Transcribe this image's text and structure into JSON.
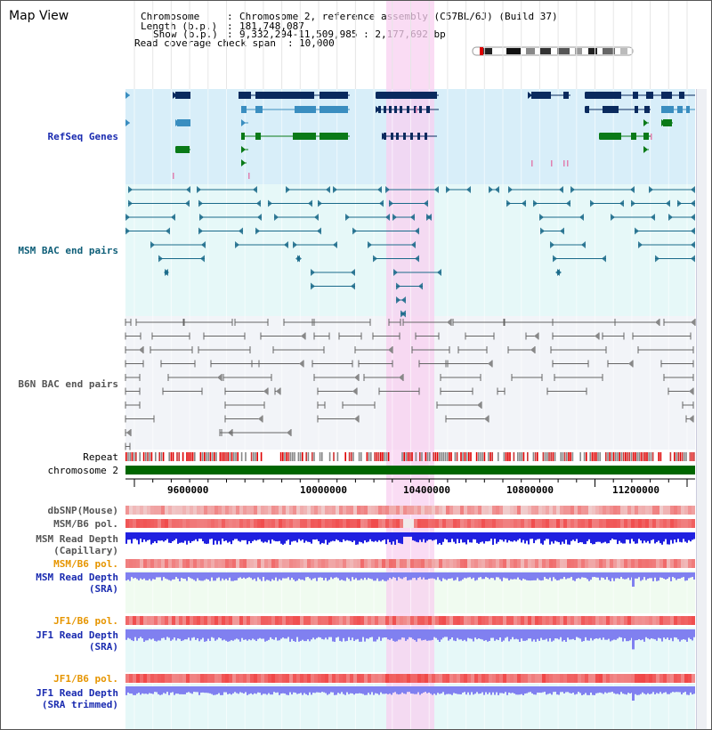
{
  "view": {
    "title": "Map View",
    "chromosome_label": "Chromosome",
    "chromosome_value": "Chromosome 2, reference assembly (C57BL/6J) (Build 37)",
    "length_label": "Length (b.p.)",
    "length_value": "181,748,087",
    "show_label": "Show (b.p.)",
    "show_value": "9,332,294-11,509,985 : 2,177,692 bp",
    "coverage_label": "Read coverage check span",
    "coverage_value": "10,000"
  },
  "tracks": {
    "refseq": "RefSeq Genes",
    "msm_bac": "MSM BAC end pairs",
    "b6n_bac": "B6N BAC end pairs",
    "repeat": "Repeat",
    "chromosome": "chromosome 2",
    "dbsnp": "dbSNP(Mouse)",
    "msm_b6_pol_1": "MSM/B6 pol.",
    "msm_read_depth_cap_1": "MSM Read Depth",
    "msm_read_depth_cap_2": "(Capillary)",
    "msm_b6_pol_2": "MSM/B6 pol.",
    "msm_read_depth_sra_1": "MSM Read Depth",
    "msm_read_depth_sra_2": "(SRA)",
    "jf1_b6_pol_1": "JF1/B6 pol.",
    "jf1_read_depth_sra_1": "JF1 Read Depth",
    "jf1_read_depth_sra_2": "(SRA)",
    "jf1_b6_pol_2": "JF1/B6 pol.",
    "jf1_read_depth_trim_1": "JF1 Read Depth",
    "jf1_read_depth_trim_2": "(SRA trimmed)"
  },
  "axis": {
    "ticks": [
      "9600000",
      "10000000",
      "10400000",
      "10800000",
      "11200000"
    ]
  },
  "colors": {
    "refseq_bg": "#d8eef9",
    "msm_bg": "#e6f8f8",
    "b6n_bg": "#f2f4f8",
    "highlight": "#f8d0f0",
    "gene_dark": "#0a2a5e",
    "gene_mid": "#3a8ec0",
    "gene_green": "#0a7a18",
    "msm_line": "#1a6a8a",
    "b6n_line": "#666666",
    "chrom_bar": "#006600",
    "depth_blue": "#2020e0",
    "depth_light": "#8080f0"
  },
  "icons": {
    "triangle-right": "▶",
    "triangle-left": "◀"
  }
}
